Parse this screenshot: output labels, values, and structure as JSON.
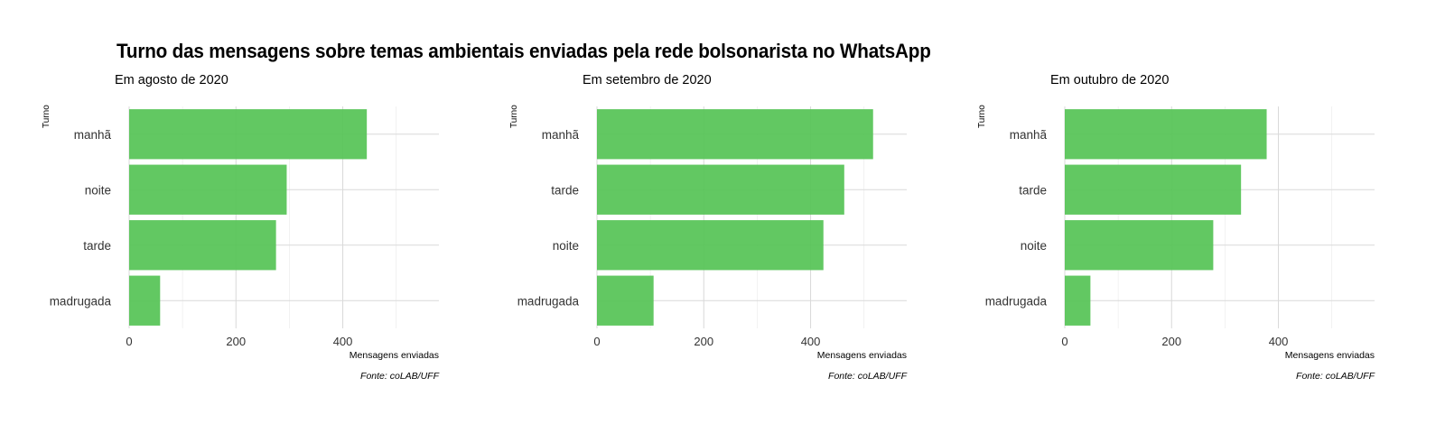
{
  "title": "Turno das mensagens sobre temas ambientais enviadas pela rede bolsonarista no WhatsApp",
  "bar_color": "#55c355",
  "chart_data": [
    {
      "type": "bar",
      "orientation": "horizontal",
      "subtitle": "Em agosto de 2020",
      "ylabel": "Turno",
      "xlabel": "Mensagens enviadas",
      "caption": "Fonte: coLAB/UFF",
      "categories": [
        "manhã",
        "noite",
        "tarde",
        "madrugada"
      ],
      "values": [
        445,
        295,
        275,
        58
      ],
      "xlim": [
        0,
        580
      ],
      "xticks": [
        0,
        200,
        400
      ],
      "grid": true
    },
    {
      "type": "bar",
      "orientation": "horizontal",
      "subtitle": "Em setembro de 2020",
      "ylabel": "Turno",
      "xlabel": "Mensagens enviadas",
      "caption": "Fonte: coLAB/UFF",
      "categories": [
        "manhã",
        "tarde",
        "noite",
        "madrugada"
      ],
      "values": [
        517,
        463,
        424,
        106
      ],
      "xlim": [
        0,
        580
      ],
      "xticks": [
        0,
        200,
        400
      ],
      "grid": true
    },
    {
      "type": "bar",
      "orientation": "horizontal",
      "subtitle": "Em outubro de 2020",
      "ylabel": "Turno",
      "xlabel": "Mensagens enviadas",
      "caption": "Fonte: coLAB/UFF",
      "categories": [
        "manhã",
        "tarde",
        "noite",
        "madrugada"
      ],
      "values": [
        378,
        330,
        278,
        48
      ],
      "xlim": [
        0,
        580
      ],
      "xticks": [
        0,
        200,
        400
      ],
      "grid": true
    }
  ]
}
